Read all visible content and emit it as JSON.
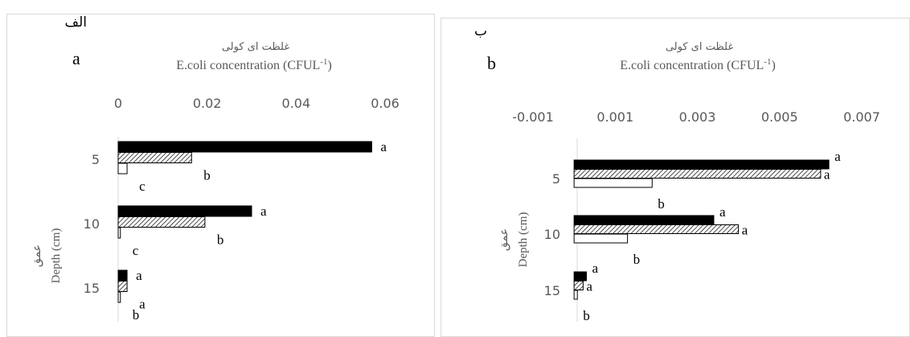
{
  "chart_data": [
    {
      "type": "bar",
      "orientation": "horizontal",
      "panel_label_fa": "الف",
      "panel_label": "a",
      "title_fa": "غلظت ای کولی",
      "title": "E.coli concentration (CFUL",
      "title_sup": "-1",
      "title_close": ")",
      "ylabel_fa": "عمق",
      "ylabel": "Depth (cm)",
      "categories": [
        "5",
        "10",
        "15"
      ],
      "xlim": [
        0,
        0.06
      ],
      "xticks": [
        0,
        0.02,
        0.04,
        0.06
      ],
      "xtick_labels": [
        "0",
        "0.02",
        "0.04",
        "0.06"
      ],
      "series": [
        {
          "fill": "solid",
          "values": [
            0.057,
            0.03,
            0.002
          ],
          "labels": [
            "a",
            "a",
            "a"
          ]
        },
        {
          "fill": "hatched",
          "values": [
            0.0165,
            0.0195,
            0.002
          ],
          "labels": [
            "b",
            "b",
            "a"
          ]
        },
        {
          "fill": "empty",
          "values": [
            0.002,
            0.0005,
            0.0005
          ],
          "labels": [
            "c",
            "c",
            "b"
          ]
        }
      ]
    },
    {
      "type": "bar",
      "orientation": "horizontal",
      "panel_label_fa": "ب",
      "panel_label": "b",
      "title_fa": "غلظت ای کولی",
      "title": "E.coli concentration (CFUL",
      "title_sup": "-1",
      "title_close": ")",
      "ylabel_fa": "عمق",
      "ylabel": "Depth (cm)",
      "categories": [
        "5",
        "10",
        "15"
      ],
      "xlim": [
        -0.001,
        0.007
      ],
      "xticks": [
        -0.001,
        0.001,
        0.003,
        0.005,
        0.007
      ],
      "xtick_labels": [
        "-0.001",
        "0.001",
        "0.003",
        "0.005",
        "0.007"
      ],
      "series": [
        {
          "fill": "solid",
          "values": [
            0.0062,
            0.0034,
            0.0003
          ],
          "labels": [
            "a",
            "a",
            "a"
          ]
        },
        {
          "fill": "hatched",
          "values": [
            0.006,
            0.004,
            0.00022
          ],
          "labels": [
            "a",
            "a",
            "a"
          ]
        },
        {
          "fill": "empty",
          "values": [
            0.0019,
            0.0013,
            8e-05
          ],
          "labels": [
            "b",
            "b",
            "b"
          ]
        }
      ]
    }
  ]
}
